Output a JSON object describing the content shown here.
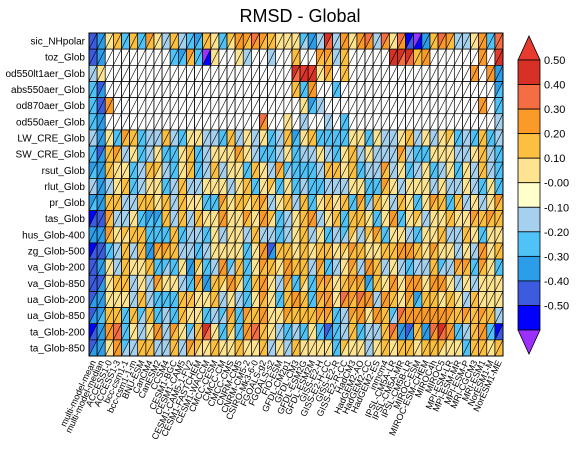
{
  "chart_data": {
    "type": "heatmap",
    "title": "RMSD - Global",
    "rows": [
      "sic_NHpolar",
      "toz_Glob",
      "od550lt1aer_Glob",
      "abs550aer_Glob",
      "od870aer_Glob",
      "od550aer_Glob",
      "LW_CRE_Glob",
      "SW_CRE_Glob",
      "rsut_Glob",
      "rlut_Glob",
      "pr_Glob",
      "tas_Glob",
      "hus_Glob-400",
      "zg_Glob-500",
      "va_Glob-200",
      "va_Glob-850",
      "ua_Glob-200",
      "ua_Glob-850",
      "ta_Glob-200",
      "ta_Glob-850"
    ],
    "columns": [
      "multi-model-mean",
      "multi-model-median",
      "ACCESS1-0",
      "ACCESS1-3",
      "bcc-csm1-1",
      "bcc-csm1-1-m",
      "BNU-ESM",
      "CanCM4",
      "CanESM2",
      "CCSM4",
      "CESM1-BGC",
      "CESM1-CAM5",
      "CESM1-CAM5-1-FV2",
      "CESM1-FASTCHEM",
      "CESM1-WACCM",
      "CMCC-CESM",
      "CMCC-CM",
      "CMCC-CMS",
      "CNRM-CM5",
      "CNRM-CM5-2",
      "CSIRO-Mk3-6-0",
      "FGOALS-g2",
      "FGOALS-s2",
      "FIO-ESM",
      "GFDL-CM2p1",
      "GFDL-CM3",
      "GFDL-ESM2G",
      "GFDL-ESM2M",
      "GISS-E2-H",
      "GISS-E2-H-CC",
      "GISS-E2-R",
      "GISS-E2-R-CC",
      "HadCM3",
      "HadGEM2-AO",
      "HadGEM2-CC",
      "HadGEM2-ES",
      "inmcm4",
      "IPSL-CM5A-LR",
      "IPSL-CM5A-MR",
      "IPSL-CM5B-LR",
      "MIROC-ESM",
      "MIROC-ESM-CHEM",
      "MIROC4h",
      "MIROC5",
      "MPI-ESM-LR",
      "MPI-ESM-MR",
      "MPI-ESM-P",
      "MRI-CGCM3",
      "MRI-ESM1",
      "NorESM1-M",
      "NorESM1-ME"
    ],
    "colorbar": {
      "ticks": [
        "0.50",
        "0.40",
        "0.30",
        "0.20",
        "0.10",
        "-0.00",
        "-0.10",
        "-0.20",
        "-0.30",
        "-0.40",
        "-0.50"
      ],
      "colors": [
        "#d73027",
        "#f46d43",
        "#fb9a29",
        "#fdbf3f",
        "#fee391",
        "#ffffcc",
        "#a6d1ee",
        "#4fc3f7",
        "#2b9de9",
        "#3c5ce0",
        "#0000ff"
      ],
      "over_color": "#e63b2e",
      "under_color": "#9b30ff"
    },
    "values": [
      [
        -0.38,
        -0.29,
        0.07,
        0.12,
        -0.12,
        0.18,
        -0.16,
        0.23,
        0.08,
        -0.06,
        0.19,
        -0.09,
        -0.12,
        -0.21,
        0.14,
        0.02,
        -0.12,
        0.11,
        0.26,
        0.21,
        0.34,
        0.23,
        0.18,
        0.04,
        0.07,
        0.01,
        -0.11,
        -0.29,
        -0.05,
        0.41,
        -0.09,
        0.29,
        0.01,
        0.27,
        0.33,
        -0.07,
        0.31,
        0.04,
        0.32,
        -0.45,
        -0.55,
        -0.25,
        0.18,
        0.33,
        0.2,
        -0.04,
        -0.04,
        0.05,
        0.25,
        -0.12,
        0.36
      ],
      [
        -0.38,
        -0.29,
        null,
        null,
        null,
        null,
        null,
        null,
        null,
        null,
        -0.12,
        -0.23,
        0.23,
        -0.13,
        -0.52,
        0.04,
        null,
        null,
        0.02,
        -0.08,
        null,
        null,
        -0.06,
        null,
        null,
        0.16,
        null,
        null,
        0.2,
        0.22,
        -0.02,
        0.17,
        null,
        null,
        null,
        null,
        null,
        0.48,
        0.4,
        0.43,
        0.18,
        0.28,
        null,
        null,
        null,
        null,
        null,
        null,
        0.28,
        null,
        0.52
      ],
      [
        -0.1,
        0.08,
        null,
        null,
        null,
        null,
        null,
        null,
        null,
        null,
        null,
        null,
        null,
        null,
        null,
        null,
        null,
        null,
        null,
        null,
        null,
        null,
        null,
        null,
        null,
        0.43,
        0.53,
        0.52,
        0.08,
        0.22,
        null,
        0.18,
        null,
        null,
        null,
        null,
        null,
        null,
        null,
        null,
        null,
        null,
        null,
        null,
        null,
        null,
        null,
        0.28,
        null,
        0.24,
        -0.27
      ],
      [
        -0.13,
        -0.34,
        null,
        null,
        null,
        null,
        null,
        null,
        null,
        null,
        null,
        null,
        null,
        null,
        null,
        null,
        null,
        null,
        null,
        null,
        null,
        null,
        null,
        null,
        null,
        0.13,
        -0.19,
        0.24,
        null,
        null,
        -0.12,
        null,
        null,
        null,
        null,
        null,
        null,
        null,
        null,
        null,
        null,
        null,
        null,
        null,
        null,
        null,
        null,
        null,
        null,
        null,
        -0.23
      ],
      [
        -0.2,
        -0.37,
        0.28,
        null,
        null,
        null,
        null,
        null,
        null,
        null,
        null,
        null,
        null,
        null,
        null,
        null,
        null,
        null,
        null,
        null,
        null,
        null,
        null,
        null,
        null,
        null,
        0.08,
        -0.21,
        0.0,
        null,
        null,
        null,
        null,
        null,
        null,
        null,
        null,
        null,
        null,
        null,
        null,
        null,
        null,
        null,
        null,
        null,
        null,
        null,
        0.28,
        null,
        -0.16
      ],
      [
        -0.16,
        -0.26,
        null,
        null,
        null,
        null,
        null,
        null,
        null,
        null,
        null,
        null,
        null,
        null,
        null,
        null,
        null,
        null,
        null,
        null,
        null,
        0.34,
        null,
        null,
        0.07,
        null,
        -0.09,
        null,
        null,
        0.0,
        null,
        -0.15,
        null,
        null,
        null,
        null,
        null,
        null,
        null,
        null,
        null,
        null,
        null,
        null,
        null,
        null,
        null,
        null,
        null,
        null,
        -0.01
      ],
      [
        -0.1,
        -0.24,
        0.08,
        -0.12,
        0.2,
        0.16,
        -0.15,
        -0.08,
        -0.05,
        0.16,
        -0.04,
        -0.14,
        0.03,
        0.08,
        -0.1,
        -0.07,
        -0.13,
        0.16,
        -0.07,
        0.03,
        -0.09,
        0.09,
        -0.19,
        -0.06,
        0.12,
        -0.22,
        0.08,
        0.17,
        -0.14,
        -0.15,
        -0.14,
        -0.18,
        0.09,
        0.02,
        -0.14,
        0.08,
        -0.07,
        -0.08,
        0.01,
        0.15,
        -0.05,
        0.06,
        -0.08,
        0.02,
        0.11,
        -0.14,
        -0.04,
        -0.18,
        0.17,
        -0.13,
        -0.05
      ],
      [
        -0.19,
        -0.32,
        0.17,
        0.21,
        -0.02,
        0.06,
        -0.16,
        -0.09,
        0.08,
        -0.14,
        -0.16,
        0.02,
        0.16,
        -0.19,
        -0.08,
        0.01,
        0.05,
        0.01,
        0.21,
        0.04,
        -0.03,
        -0.17,
        -0.19,
        -0.08,
        0.08,
        -0.16,
        -0.06,
        -0.01,
        0.05,
        -0.1,
        -0.18,
        0.06,
        0.14,
        -0.09,
        0.01,
        -0.09,
        -0.06,
        -0.02,
        0.22,
        0.0,
        -0.19,
        -0.12,
        0.08,
        0.09,
        0.05,
        -0.02,
        -0.02,
        0.01,
        0.14,
        -0.05,
        -0.15
      ],
      [
        -0.22,
        -0.26,
        0.13,
        0.06,
        0.05,
        -0.18,
        -0.04,
        0.19,
        0.11,
        -0.02,
        -0.12,
        0.05,
        0.16,
        -0.14,
        -0.07,
        0.17,
        -0.04,
        0.07,
        0.04,
        -0.13,
        0.19,
        0.02,
        -0.03,
        0.2,
        -0.11,
        -0.18,
        -0.14,
        -0.16,
        -0.05,
        0.16,
        0.12,
        0.08,
        0.12,
        -0.18,
        -0.08,
        -0.03,
        0.2,
        -0.05,
        0.1,
        -0.18,
        -0.08,
        0.1,
        -0.12,
        -0.03,
        0.05,
        -0.18,
        0.05,
        -0.1,
        0.16,
        -0.04,
        -0.16
      ],
      [
        -0.09,
        -0.27,
        -0.04,
        0.05,
        0.17,
        -0.12,
        0.0,
        0.1,
        0.08,
        -0.12,
        -0.06,
        0.17,
        -0.08,
        -0.03,
        0.1,
        0.09,
        0.09,
        0.0,
        0.08,
        0.18,
        -0.13,
        0.02,
        0.11,
        -0.13,
        0.01,
        -0.18,
        -0.03,
        -0.13,
        -0.12,
        -0.03,
        -0.05,
        -0.02,
        0.04,
        0.01,
        -0.17,
        -0.16,
        0.21,
        0.04,
        -0.06,
        0.01,
        0.06,
        0.07,
        -0.04,
        0.1,
        -0.02,
        -0.03,
        0.02,
        -0.07,
        -0.15,
        0.03,
        -0.19
      ],
      [
        -0.23,
        -0.29,
        0.12,
        0.16,
        -0.04,
        -0.01,
        0.15,
        0.18,
        0.06,
        0.15,
        -0.04,
        0.19,
        0.01,
        0.05,
        -0.13,
        -0.18,
        0.23,
        0.06,
        0.12,
        0.11,
        0.14,
        0.23,
        -0.07,
        0.05,
        0.16,
        -0.06,
        0.12,
        -0.14,
        0.09,
        0.13,
        0.09,
        0.14,
        -0.12,
        0.2,
        -0.11,
        0.14,
        0.07,
        -0.02,
        0.15,
        0.05,
        -0.19,
        0.03,
        0.21,
        0.16,
        -0.16,
        0.19,
        -0.06,
        0.01,
        -0.07,
        0.1,
        0.23
      ],
      [
        -0.43,
        -0.37,
        0.23,
        -0.04,
        -0.09,
        0.03,
        -0.2,
        -0.21,
        -0.21,
        0.14,
        0.0,
        0.12,
        -0.04,
        0.13,
        0.06,
        0.04,
        0.26,
        0.01,
        0.04,
        0.22,
        0.06,
        0.24,
        0.11,
        -0.13,
        0.0,
        0.01,
        0.13,
        0.24,
        -0.06,
        0.1,
        0.15,
        -0.15,
        0.14,
        0.14,
        0.07,
        -0.15,
        0.07,
        0.27,
        -0.19,
        0.07,
        0.11,
        -0.02,
        0.06,
        0.04,
        0.12,
        0.09,
        0.04,
        0.2,
        0.14,
        0.2,
        0.18
      ],
      [
        -0.29,
        -0.28,
        0.21,
        0.06,
        0.11,
        0.17,
        0.15,
        -0.17,
        -0.2,
        -0.12,
        0.12,
        -0.12,
        -0.09,
        -0.08,
        -0.12,
        0.02,
        -0.05,
        0.03,
        0.08,
        -0.07,
        0.15,
        -0.05,
        -0.1,
        -0.13,
        0.0,
        0.02,
        0.19,
        -0.03,
        0.03,
        -0.17,
        -0.05,
        -0.11,
        0.11,
        -0.05,
        0.11,
        0.21,
        -0.2,
        0.01,
        0.04,
        -0.09,
        -0.16,
        0.04,
        0.03,
        0.14,
        -0.05,
        -0.07,
        0.13,
        0.02,
        -0.15,
        0.04,
        0.02
      ],
      [
        -0.45,
        -0.38,
        -0.14,
        -0.09,
        0.17,
        -0.04,
        0.12,
        -0.24,
        0.21,
        0.2,
        0.16,
        0.0,
        -0.09,
        -0.16,
        -0.02,
        0.03,
        0.09,
        0.08,
        0.01,
        -0.15,
        0.09,
        0.28,
        -0.3,
        0.18,
        0.15,
        0.1,
        0.17,
        0.07,
        0.19,
        0.13,
        0.07,
        0.11,
        0.21,
        0.13,
        0.09,
        0.03,
        0.16,
        0.18,
        0.26,
        0.29,
        0.17,
        0.04,
        0.2,
        0.02,
        0.05,
        -0.07,
        0.01,
        -0.01,
        0.25,
        0.03,
        0.18
      ],
      [
        -0.38,
        -0.29,
        0.04,
        -0.1,
        0.17,
        0.07,
        0.08,
        0.13,
        -0.2,
        -0.11,
        -0.13,
        0.05,
        -0.25,
        0.11,
        -0.19,
        0.0,
        0.25,
        -0.11,
        0.16,
        -0.13,
        0.07,
        0.22,
        0.19,
        0.06,
        0.24,
        0.18,
        0.15,
        -0.08,
        0.2,
        -0.19,
        -0.04,
        0.03,
        0.21,
        -0.06,
        0.24,
        0.12,
        -0.1,
        0.08,
        0.0,
        -0.17,
        -0.04,
        -0.03,
        0.12,
        -0.11,
        -0.02,
        0.2,
        0.22,
        -0.18,
        0.22,
        0.05,
        -0.14
      ],
      [
        -0.37,
        -0.3,
        0.08,
        0.13,
        0.15,
        -0.02,
        0.01,
        -0.06,
        0.2,
        0.07,
        0.04,
        -0.07,
        -0.18,
        0.2,
        -0.25,
        0.13,
        0.11,
        0.27,
        0.11,
        -0.14,
        0.13,
        0.3,
        0.02,
        -0.02,
        0.22,
        -0.12,
        0.11,
        -0.17,
        0.21,
        0.23,
        0.05,
        0.13,
        0.21,
        0.22,
        -0.21,
        0.14,
        0.05,
        0.25,
        0.1,
        0.25,
        0.25,
        0.06,
        0.27,
        0.28,
        0.1,
        -0.04,
        0.09,
        -0.05,
        0.1,
        0.05,
        0.05
      ],
      [
        -0.31,
        -0.29,
        0.07,
        0.01,
        0.01,
        -0.01,
        0.14,
        -0.08,
        -0.2,
        -0.16,
        -0.12,
        0.18,
        0.16,
        0.06,
        0.1,
        0.14,
        -0.07,
        0.08,
        -0.02,
        -0.12,
        0.05,
        0.23,
        0.05,
        -0.14,
        0.18,
        0.28,
        0.16,
        -0.19,
        0.21,
        0.25,
        0.07,
        0.34,
        0.21,
        0.31,
        0.29,
        -0.01,
        0.24,
        0.15,
        0.09,
        0.22,
        -0.21,
        0.17,
        0.19,
        0.06,
        0.13,
        0.04,
        -0.02,
        0.15,
        0.1,
        0.08,
        0.05
      ],
      [
        -0.32,
        -0.22,
        0.13,
        0.18,
        -0.14,
        0.12,
        -0.11,
        0.17,
        -0.19,
        -0.04,
        -0.15,
        0.18,
        0.06,
        0.07,
        -0.17,
        -0.01,
        -0.11,
        0.22,
        -0.18,
        0.21,
        0.15,
        0.24,
        0.01,
        0.03,
        0.2,
        0.12,
        0.13,
        0.12,
        0.21,
        0.22,
        -0.17,
        0.0,
        0.21,
        0.25,
        0.09,
        0.25,
        0.14,
        -0.11,
        0.35,
        0.3,
        0.26,
        0.24,
        0.26,
        0.25,
        0.2,
        0.18,
        0.2,
        0.17,
        0.2,
        0.14,
        -0.04
      ],
      [
        -0.42,
        -0.26,
        0.28,
        0.36,
        -0.13,
        0.1,
        -0.04,
        0.04,
        0.26,
        -0.01,
        0.2,
        0.01,
        -0.11,
        0.12,
        0.45,
        0.01,
        -0.12,
        0.11,
        -0.15,
        0.25,
        0.38,
        0.18,
        0.01,
        0.0,
        -0.16,
        -0.07,
        -0.14,
        0.1,
        -0.2,
        -0.32,
        -0.14,
        -0.08,
        0.14,
        -0.12,
        -0.03,
        -0.06,
        0.15,
        0.31,
        -0.26,
        -0.32,
        0.14,
        -0.27,
        0.33,
        0.4,
        0.28,
        -0.2,
        -0.02,
        0.18,
        0.28,
        -0.12,
        -0.46
      ],
      [
        -0.31,
        -0.26,
        0.09,
        0.24,
        -0.11,
        -0.02,
        0.19,
        0.12,
        -0.02,
        -0.1,
        0.17,
        -0.02,
        0.2,
        0.11,
        0.01,
        0.13,
        0.02,
        0.09,
        0.15,
        0.04,
        0.05,
        0.14,
        -0.09,
        0.07,
        -0.08,
        0.13,
        0.08,
        0.05,
        0.02,
        0.02,
        -0.14,
        0.11,
        0.06,
        0.1,
        -0.02,
        0.08,
        0.17,
        0.08,
        0.18,
        0.19,
        0.1,
        0.19,
        0.15,
        0.11,
        0.02,
        0.04,
        -0.13,
        0.18,
        0.15,
        0.05,
        0.18
      ]
    ]
  }
}
